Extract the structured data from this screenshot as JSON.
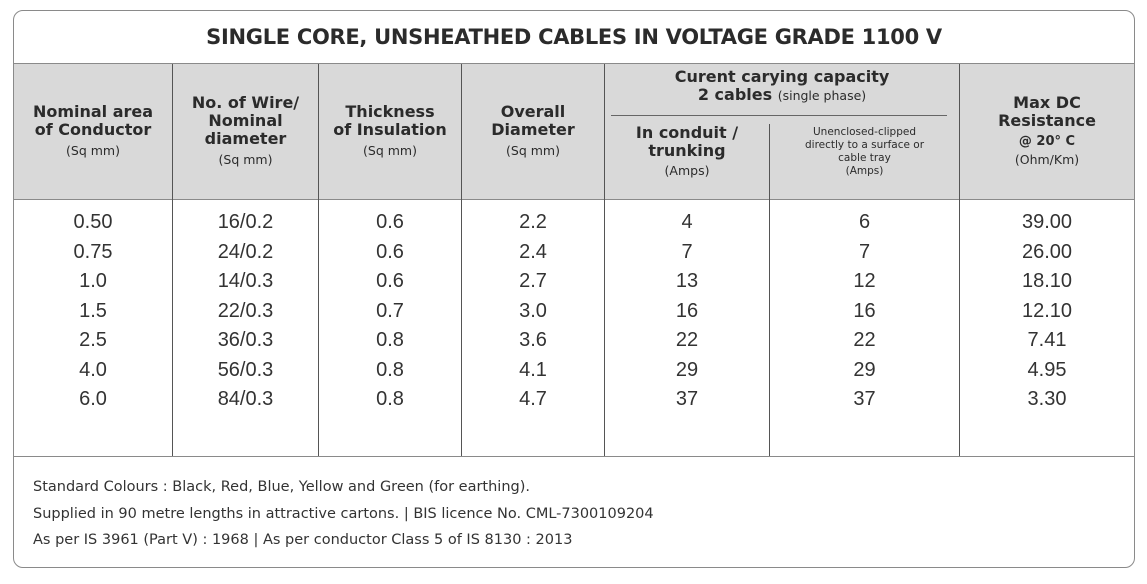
{
  "title": "SINGLE CORE, UNSHEATHED CABLES IN VOLTAGE GRADE 1100 V",
  "headers": {
    "col1": {
      "line1": "Nominal area",
      "line2": "of Conductor",
      "unit": "(Sq mm)"
    },
    "col2": {
      "line1": "No. of Wire/",
      "line2": "Nominal",
      "line3": "diameter",
      "unit": "(Sq mm)"
    },
    "col3": {
      "line1": "Thickness",
      "line2": "of Insulation",
      "unit": "(Sq mm)"
    },
    "col4": {
      "line1": "Overall",
      "line2": "Diameter",
      "unit": "(Sq mm)"
    },
    "group": {
      "line1": "Curent carying capacity",
      "line2": "2 cables",
      "line2_small": "(single phase)"
    },
    "col5": {
      "line1": "In conduit /",
      "line2": "trunking",
      "unit": "(Amps)"
    },
    "col6": {
      "line1": "Unenclosed-clipped",
      "line2": "directly to a surface or",
      "line3": "cable tray",
      "unit": "(Amps)"
    },
    "col7": {
      "line1": "Max DC",
      "line2": "Resistance",
      "line3": "@ 20° C",
      "unit": "(Ohm/Km)"
    }
  },
  "rows": [
    [
      "0.50",
      "16/0.2",
      "0.6",
      "2.2",
      "4",
      "6",
      "39.00"
    ],
    [
      "0.75",
      "24/0.2",
      "0.6",
      "2.4",
      "7",
      "7",
      "26.00"
    ],
    [
      "1.0",
      "14/0.3",
      "0.6",
      "2.7",
      "13",
      "12",
      "18.10"
    ],
    [
      "1.5",
      "22/0.3",
      "0.7",
      "3.0",
      "16",
      "16",
      "12.10"
    ],
    [
      "2.5",
      "36/0.3",
      "0.8",
      "3.6",
      "22",
      "22",
      "7.41"
    ],
    [
      "4.0",
      "56/0.3",
      "0.8",
      "4.1",
      "29",
      "29",
      "4.95"
    ],
    [
      "6.0",
      "84/0.3",
      "0.8",
      "4.7",
      "37",
      "37",
      "3.30"
    ]
  ],
  "footer": [
    "Standard Colours : Black, Red, Blue, Yellow and Green (for earthing).",
    "Supplied in 90 metre lengths in attractive cartons.  |  BIS licence No. CML-7300109204",
    "As per IS 3961 (Part V) : 1968  |  As per conductor Class 5 of IS 8130 : 2013"
  ]
}
